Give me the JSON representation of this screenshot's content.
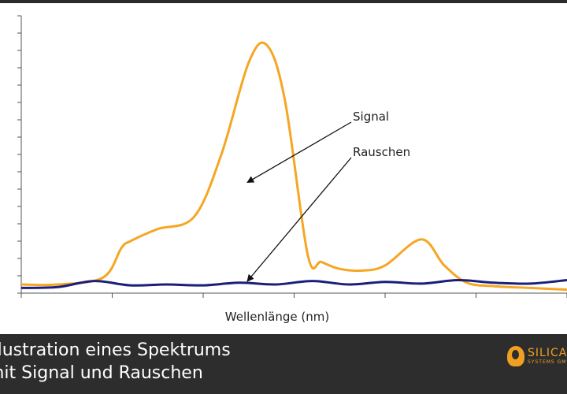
{
  "chart_data": {
    "type": "line",
    "title": "",
    "xlabel": "Wellenlänge (nm)",
    "ylabel": "",
    "xlim": [
      0,
      6
    ],
    "ylim": [
      0,
      16
    ],
    "grid": false,
    "series": [
      {
        "label": "Signal",
        "color": "#f5a623",
        "x": [
          0,
          0.4,
          0.9,
          1.1,
          1.2,
          1.5,
          1.9,
          2.2,
          2.5,
          2.7,
          2.9,
          3.15,
          3.3,
          3.5,
          3.75,
          4.0,
          4.4,
          4.65,
          4.9,
          5.2,
          5.6,
          6.0
        ],
        "y": [
          0.5,
          0.5,
          0.9,
          2.6,
          3.0,
          3.7,
          4.4,
          8.0,
          13.3,
          14.3,
          11.1,
          2.2,
          1.8,
          1.4,
          1.3,
          1.6,
          3.1,
          1.6,
          0.6,
          0.4,
          0.3,
          0.2
        ]
      },
      {
        "label": "Rauschen",
        "color": "#1c1f7a",
        "x": [
          0,
          0.4,
          0.8,
          1.2,
          1.6,
          2.0,
          2.4,
          2.8,
          3.2,
          3.6,
          4.0,
          4.4,
          4.8,
          5.2,
          5.6,
          6.0
        ],
        "y": [
          0.3,
          0.35,
          0.7,
          0.45,
          0.5,
          0.45,
          0.6,
          0.5,
          0.7,
          0.5,
          0.65,
          0.55,
          0.75,
          0.6,
          0.55,
          0.75
        ]
      }
    ],
    "annotations": [
      {
        "text": "Signal",
        "series": 0,
        "target_x": 2.45,
        "target_y": 6.2
      },
      {
        "text": "Rauschen",
        "series": 1,
        "target_x": 2.45,
        "target_y": 0.5
      }
    ]
  },
  "caption": {
    "line1": "Illustration eines Spektrums",
    "line2": "mit Signal und Rauschen"
  },
  "logo": {
    "name": "SILICANN",
    "sub": "SYSTEMS GMBH"
  }
}
